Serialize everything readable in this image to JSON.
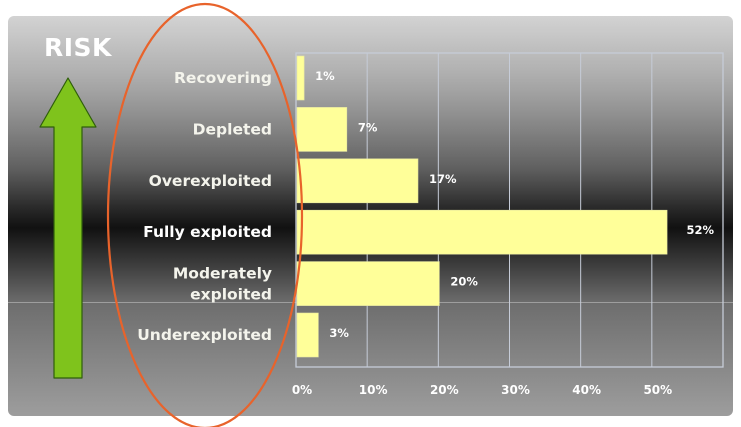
{
  "risk_label": "RISK",
  "colors": {
    "bar_fill": "#ffff99",
    "arrow_fill": "#7fc31c",
    "ellipse_stroke": "#e8632b",
    "grid": "#c6ccd8"
  },
  "chart_data": {
    "type": "bar",
    "orientation": "horizontal",
    "title": "",
    "xlabel": "",
    "ylabel": "",
    "categories": [
      "Recovering",
      "Depleted",
      "Overexploited",
      "Fully exploited",
      "Moderately exploited",
      "Underexploited"
    ],
    "category_lines": [
      [
        "Recovering"
      ],
      [
        "Depleted"
      ],
      [
        "Overexploited"
      ],
      [
        "Fully exploited"
      ],
      [
        "Moderately",
        "exploited"
      ],
      [
        "Underexploited"
      ]
    ],
    "values": [
      1,
      7,
      17,
      52,
      20,
      3
    ],
    "value_labels": [
      "1%",
      "7%",
      "17%",
      "52%",
      "20%",
      "3%"
    ],
    "xlim": [
      0,
      60
    ],
    "xticks": [
      0,
      10,
      20,
      30,
      40,
      50
    ],
    "xtick_labels": [
      "0%",
      "10%",
      "20%",
      "30%",
      "40%",
      "50%"
    ],
    "grid": true,
    "legend": "none"
  }
}
